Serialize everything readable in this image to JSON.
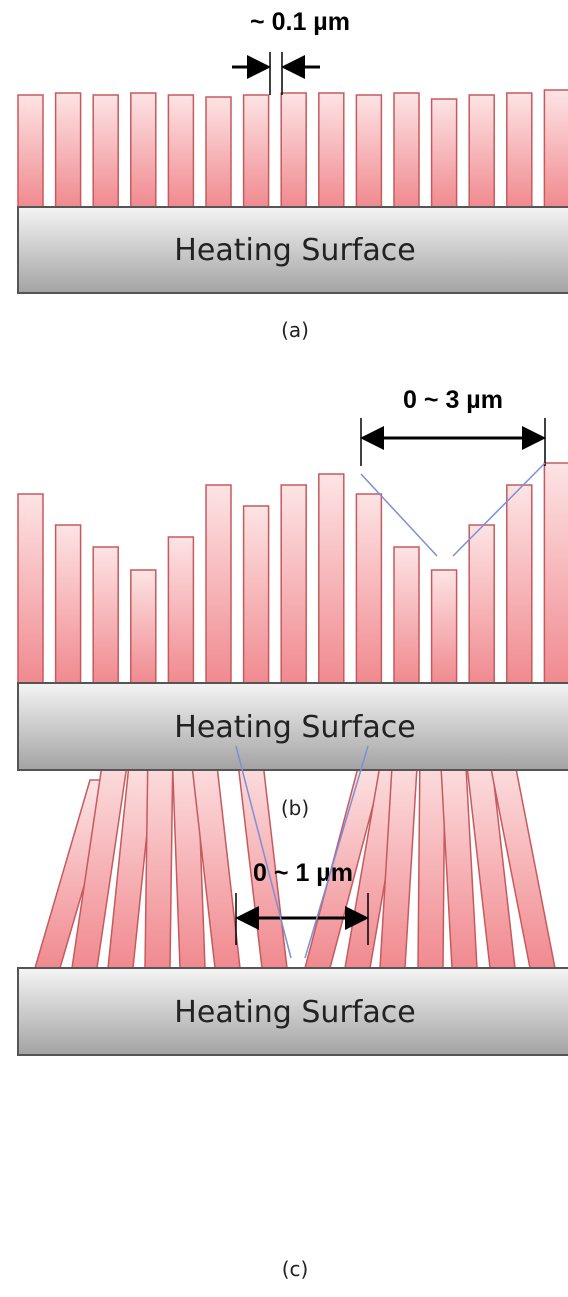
{
  "panels": [
    {
      "dimension": "~ 0.1 µm",
      "surface": "Heating Surface",
      "caption": "(a)"
    },
    {
      "dimension": "0 ~ 3 µm",
      "surface": "Heating Surface",
      "caption": "(b)"
    },
    {
      "dimension": "0 ~ 1 µm",
      "surface": "Heating Surface",
      "caption": "(c)"
    }
  ]
}
